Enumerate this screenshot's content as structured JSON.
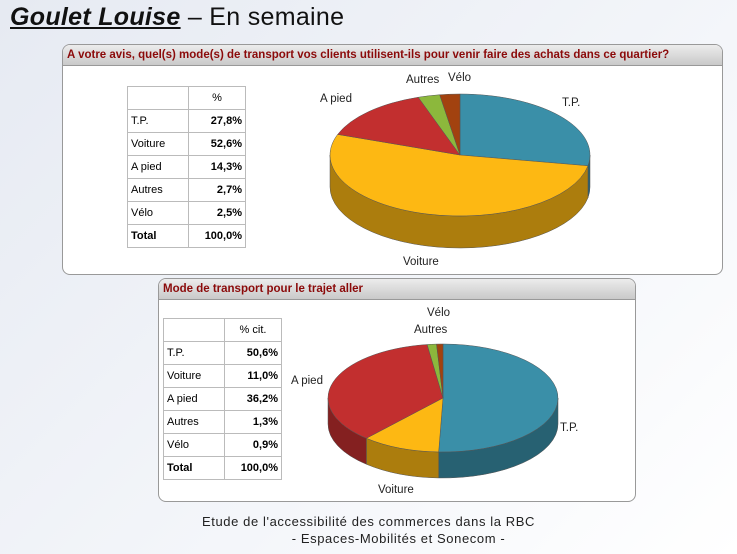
{
  "title": {
    "name": "Goulet Louise",
    "suffix": " – En semaine"
  },
  "chart_data": [
    {
      "type": "pie",
      "title": "A votre avis, quel(s) mode(s) de transport vos clients utilisent-ils pour venir faire des achats dans ce quartier?",
      "column_header": "%",
      "categories": [
        "T.P.",
        "Voiture",
        "A pied",
        "Autres",
        "Vélo"
      ],
      "values": [
        27.8,
        52.6,
        14.3,
        2.7,
        2.5
      ],
      "labels": [
        "27,8%",
        "52,6%",
        "14,3%",
        "2,7%",
        "2,5%"
      ],
      "total_label": "Total",
      "total": "100,0%",
      "colors": [
        "#3a8fa8",
        "#fdb813",
        "#c22f2f",
        "#8cb83c",
        "#a2420f"
      ]
    },
    {
      "type": "pie",
      "title": "Mode de transport pour le trajet aller",
      "column_header": "% cit.",
      "categories": [
        "T.P.",
        "Voiture",
        "A pied",
        "Autres",
        "Vélo"
      ],
      "values": [
        50.6,
        11.0,
        36.2,
        1.3,
        0.9
      ],
      "labels": [
        "50,6%",
        "11,0%",
        "36,2%",
        "1,3%",
        "0,9%"
      ],
      "total_label": "Total",
      "total": "100,0%",
      "colors": [
        "#3a8fa8",
        "#fdb813",
        "#c22f2f",
        "#8cb83c",
        "#a2420f"
      ]
    }
  ],
  "footer": {
    "line1": "Etude de l'accessibilité des commerces dans la RBC",
    "line2": "- Espaces-Mobilités et Sonecom  -"
  }
}
